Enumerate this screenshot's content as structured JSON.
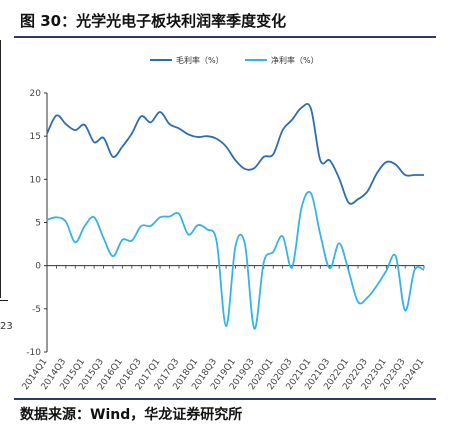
{
  "figure": {
    "title": "图 30：光学光电子板块利润率季度变化",
    "source": "数据来源：Wind，华龙证券研究所",
    "edge_fragment": "23"
  },
  "colors": {
    "series1": "#2e6cb2",
    "series2": "#36b3e4",
    "axis": "#333333",
    "frame": "#2f3a63"
  },
  "chart_data": {
    "type": "line",
    "xlabel": "",
    "ylabel": "",
    "ylim": [
      -10,
      20
    ],
    "yticks": [
      -10,
      -5,
      0,
      5,
      10,
      15,
      20
    ],
    "legend_position": "top",
    "grid": false,
    "categories": [
      "2014Q1",
      "2014Q3",
      "2015Q1",
      "2015Q3",
      "2016Q1",
      "2016Q3",
      "2017Q1",
      "2017Q3",
      "2018Q1",
      "2018Q3",
      "2019Q1",
      "2019Q3",
      "2020Q1",
      "2020Q3",
      "2021Q1",
      "2021Q3",
      "2022Q1",
      "2022Q3",
      "2023Q1",
      "2023Q3",
      "2024Q1"
    ],
    "x": [
      "2014Q1",
      "2014Q2",
      "2014Q3",
      "2014Q4",
      "2015Q1",
      "2015Q2",
      "2015Q3",
      "2015Q4",
      "2016Q1",
      "2016Q2",
      "2016Q3",
      "2016Q4",
      "2017Q1",
      "2017Q2",
      "2017Q3",
      "2017Q4",
      "2018Q1",
      "2018Q2",
      "2018Q3",
      "2018Q4",
      "2019Q1",
      "2019Q2",
      "2019Q3",
      "2019Q4",
      "2020Q1",
      "2020Q2",
      "2020Q3",
      "2020Q4",
      "2021Q1",
      "2021Q2",
      "2021Q3",
      "2021Q4",
      "2022Q1",
      "2022Q2",
      "2022Q3",
      "2022Q4",
      "2023Q1",
      "2023Q2",
      "2023Q3",
      "2023Q4",
      "2024Q1"
    ],
    "series": [
      {
        "name": "毛利率（%）",
        "values": [
          15.3,
          17.4,
          16.4,
          15.7,
          16.3,
          14.3,
          14.8,
          12.6,
          13.8,
          15.3,
          17.3,
          16.6,
          17.8,
          16.4,
          15.9,
          15.2,
          14.9,
          15.0,
          14.7,
          13.8,
          12.2,
          11.2,
          11.3,
          12.6,
          12.9,
          15.7,
          16.9,
          18.3,
          18.2,
          12.2,
          12.2,
          10.1,
          7.3,
          7.7,
          8.6,
          10.7,
          12.0,
          11.7,
          10.5,
          10.5,
          10.5
        ]
      },
      {
        "name": "净利率（%）",
        "values": [
          5.3,
          5.6,
          5.1,
          2.7,
          4.6,
          5.6,
          3.2,
          1.1,
          3.0,
          2.9,
          4.6,
          4.6,
          5.6,
          5.7,
          6.0,
          3.6,
          4.7,
          4.2,
          2.8,
          -7.0,
          2.3,
          2.5,
          -7.3,
          0.4,
          1.6,
          3.4,
          -0.2,
          6.7,
          8.4,
          3.6,
          -0.3,
          2.6,
          -0.6,
          -4.2,
          -3.7,
          -2.3,
          -0.6,
          1.1,
          -5.2,
          -0.5,
          -0.5
        ]
      }
    ]
  }
}
